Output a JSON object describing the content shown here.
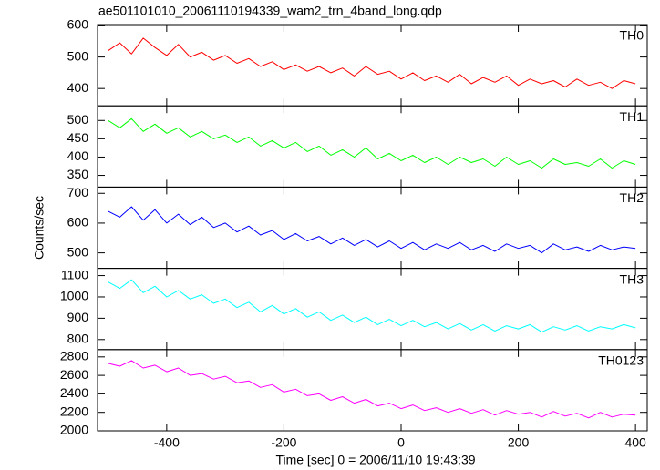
{
  "chart_data": {
    "type": "line",
    "title": "ae501101010_20061110194339_wam2_trn_4band_long.qdp",
    "xlabel": "Time [sec] 0 = 2006/11/10 19:43:39",
    "ylabel": "Counts/sec",
    "x": [
      -500,
      -480,
      -460,
      -440,
      -420,
      -400,
      -380,
      -360,
      -340,
      -320,
      -300,
      -280,
      -260,
      -240,
      -220,
      -200,
      -180,
      -160,
      -140,
      -120,
      -100,
      -80,
      -60,
      -40,
      -20,
      0,
      20,
      40,
      60,
      80,
      100,
      120,
      140,
      160,
      180,
      200,
      220,
      240,
      260,
      280,
      300,
      320,
      340,
      360,
      380,
      400
    ],
    "xlim": [
      -518,
      420
    ],
    "xticks": [
      -400,
      -200,
      0,
      200,
      400
    ],
    "series": [
      {
        "name": "TH0",
        "color": "#ff0000",
        "ylim": [
          345,
          603
        ],
        "yticks": [
          400,
          500,
          600
        ],
        "values": [
          520,
          545,
          510,
          560,
          530,
          505,
          540,
          500,
          515,
          490,
          505,
          480,
          495,
          470,
          485,
          460,
          475,
          455,
          470,
          450,
          465,
          440,
          470,
          445,
          455,
          430,
          450,
          425,
          440,
          420,
          445,
          415,
          435,
          420,
          440,
          410,
          430,
          415,
          425,
          405,
          430,
          410,
          420,
          400,
          425,
          415
        ]
      },
      {
        "name": "TH1",
        "color": "#00ff00",
        "ylim": [
          318,
          540
        ],
        "yticks": [
          350,
          400,
          450,
          500
        ],
        "values": [
          500,
          480,
          505,
          470,
          490,
          465,
          480,
          455,
          470,
          450,
          460,
          440,
          455,
          430,
          445,
          425,
          440,
          415,
          430,
          405,
          420,
          400,
          425,
          395,
          410,
          390,
          405,
          385,
          400,
          380,
          400,
          385,
          395,
          375,
          400,
          380,
          390,
          370,
          395,
          380,
          385,
          375,
          395,
          370,
          390,
          380
        ]
      },
      {
        "name": "TH2",
        "color": "#0000ff",
        "ylim": [
          448,
          721
        ],
        "yticks": [
          500,
          600,
          700
        ],
        "values": [
          640,
          620,
          655,
          610,
          645,
          600,
          630,
          595,
          620,
          585,
          600,
          570,
          590,
          560,
          575,
          545,
          565,
          540,
          555,
          530,
          550,
          525,
          545,
          520,
          540,
          515,
          535,
          510,
          530,
          515,
          535,
          510,
          525,
          505,
          530,
          515,
          525,
          500,
          530,
          510,
          520,
          505,
          525,
          510,
          520,
          515
        ]
      },
      {
        "name": "TH3",
        "color": "#00ffff",
        "ylim": [
          753,
          1134
        ],
        "yticks": [
          800,
          900,
          1000,
          1100
        ],
        "values": [
          1070,
          1040,
          1080,
          1020,
          1050,
          1000,
          1030,
          990,
          1010,
          970,
          990,
          950,
          975,
          930,
          960,
          920,
          945,
          905,
          930,
          890,
          915,
          880,
          905,
          870,
          895,
          865,
          890,
          860,
          880,
          850,
          875,
          845,
          870,
          840,
          865,
          850,
          870,
          835,
          860,
          845,
          865,
          840,
          860,
          850,
          870,
          855
        ]
      },
      {
        "name": "TH0123",
        "color": "#ff00ff",
        "ylim": [
          2000,
          2879
        ],
        "yticks": [
          2000,
          2200,
          2400,
          2600,
          2800
        ],
        "values": [
          2730,
          2700,
          2760,
          2680,
          2710,
          2640,
          2680,
          2600,
          2620,
          2560,
          2590,
          2520,
          2540,
          2470,
          2500,
          2420,
          2450,
          2380,
          2400,
          2330,
          2370,
          2300,
          2340,
          2270,
          2300,
          2240,
          2280,
          2220,
          2250,
          2200,
          2240,
          2190,
          2230,
          2170,
          2220,
          2180,
          2200,
          2150,
          2210,
          2160,
          2190,
          2140,
          2200,
          2150,
          2180,
          2170
        ]
      }
    ]
  }
}
